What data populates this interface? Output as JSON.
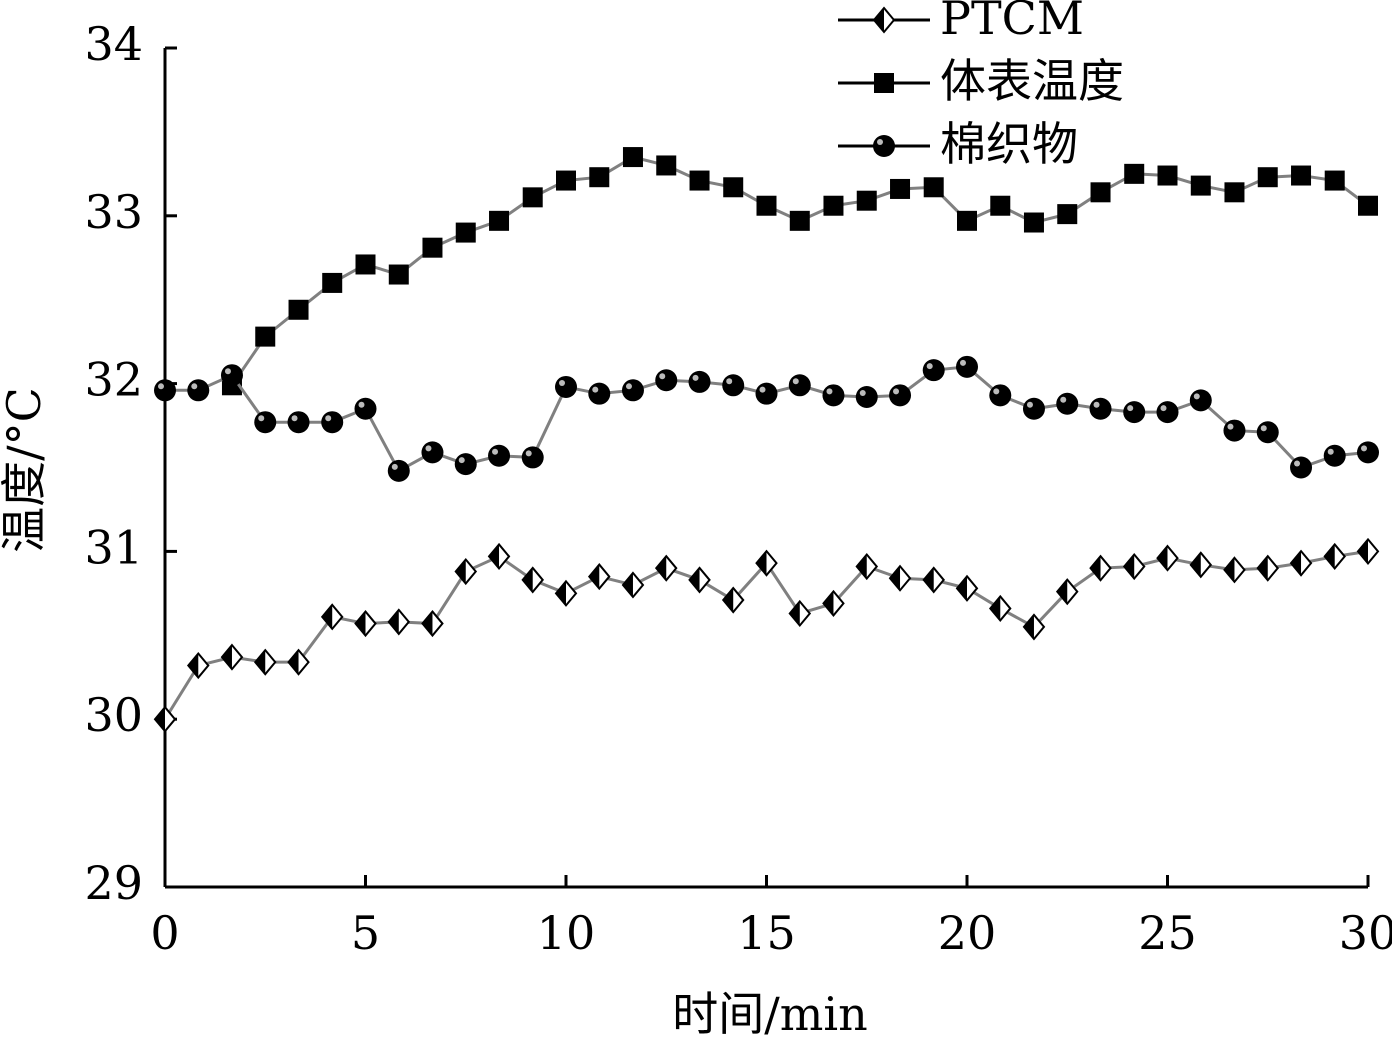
{
  "chart_data": {
    "type": "line",
    "x_label": "时间/min",
    "y_label": "温度/°C",
    "xlim": [
      0,
      30
    ],
    "xticks": [
      0,
      5,
      10,
      15,
      20,
      25,
      30
    ],
    "ylim": [
      29,
      34
    ],
    "yticks": [
      29,
      30,
      31,
      32,
      33,
      34
    ],
    "legend": "top-right",
    "series": [
      {
        "name": "PTCM",
        "marker": "diamond",
        "color": "#000000",
        "line_color": "#808080",
        "x": [
          0,
          0.83,
          1.67,
          2.5,
          3.33,
          4.17,
          5,
          5.83,
          6.67,
          7.5,
          8.33,
          9.17,
          10,
          10.83,
          11.67,
          12.5,
          13.33,
          14.17,
          15,
          15.83,
          16.67,
          17.5,
          18.33,
          19.17,
          20,
          20.83,
          21.67,
          22.5,
          23.33,
          24.17,
          25,
          25.83,
          26.67,
          27.5,
          28.33,
          29.17,
          30
        ],
        "values": [
          30.0,
          30.32,
          30.37,
          30.34,
          30.34,
          30.61,
          30.57,
          30.58,
          30.57,
          30.88,
          30.97,
          30.83,
          30.75,
          30.85,
          30.8,
          30.9,
          30.83,
          30.71,
          30.93,
          30.63,
          30.69,
          30.91,
          30.84,
          30.83,
          30.78,
          30.66,
          30.55,
          30.76,
          30.9,
          30.91,
          30.96,
          30.92,
          30.89,
          30.9,
          30.93,
          30.97,
          31.0
        ]
      },
      {
        "name": "体表温度",
        "marker": "square",
        "color": "#000000",
        "line_color": "#808080",
        "x": [
          1.67,
          2.5,
          3.33,
          4.17,
          5,
          5.83,
          6.67,
          7.5,
          8.33,
          9.17,
          10,
          10.83,
          11.67,
          12.5,
          13.33,
          14.17,
          15,
          15.83,
          16.67,
          17.5,
          18.33,
          19.17,
          20,
          20.83,
          21.67,
          22.5,
          23.33,
          24.17,
          25,
          25.83,
          26.67,
          27.5,
          28.33,
          29.17,
          30
        ],
        "values": [
          31.99,
          32.28,
          32.44,
          32.6,
          32.71,
          32.65,
          32.81,
          32.9,
          32.97,
          33.11,
          33.21,
          33.23,
          33.35,
          33.3,
          33.21,
          33.17,
          33.06,
          32.97,
          33.06,
          33.09,
          33.16,
          33.17,
          32.97,
          33.06,
          32.96,
          33.01,
          33.14,
          33.25,
          33.24,
          33.18,
          33.14,
          33.23,
          33.24,
          33.21,
          33.06
        ]
      },
      {
        "name": "棉织物",
        "marker": "circle",
        "color": "#000000",
        "line_color": "#808080",
        "x": [
          0,
          0.83,
          1.67,
          2.5,
          3.33,
          4.17,
          5,
          5.83,
          6.67,
          7.5,
          8.33,
          9.17,
          10,
          10.83,
          11.67,
          12.5,
          13.33,
          14.17,
          15,
          15.83,
          16.67,
          17.5,
          18.33,
          19.17,
          20,
          20.83,
          21.67,
          22.5,
          23.33,
          24.17,
          25,
          25.83,
          26.67,
          27.5,
          28.33,
          29.17,
          30
        ],
        "values": [
          31.96,
          31.96,
          32.05,
          31.77,
          31.77,
          31.77,
          31.85,
          31.48,
          31.59,
          31.52,
          31.57,
          31.56,
          31.98,
          31.94,
          31.96,
          32.02,
          32.01,
          31.99,
          31.94,
          31.99,
          31.93,
          31.92,
          31.93,
          32.08,
          32.1,
          31.93,
          31.85,
          31.88,
          31.85,
          31.83,
          31.83,
          31.9,
          31.72,
          31.71,
          31.5,
          31.57,
          31.59
        ]
      }
    ]
  }
}
